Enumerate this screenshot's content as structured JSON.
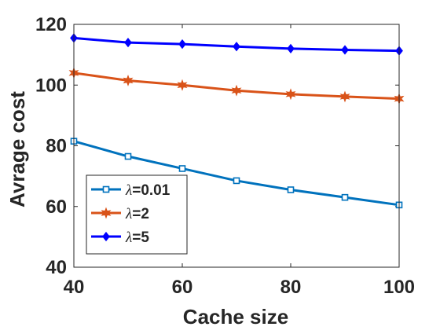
{
  "chart_data": {
    "type": "line",
    "x": [
      40,
      50,
      60,
      70,
      80,
      90,
      100
    ],
    "xlabel": "Cache size",
    "ylabel": "Avrage cost",
    "xlim": [
      40,
      100
    ],
    "ylim": [
      40,
      120
    ],
    "xticks": [
      "40",
      "60",
      "80",
      "100"
    ],
    "yticks": [
      "40",
      "60",
      "80",
      "100",
      "120"
    ],
    "grid": false,
    "legend_position": "bottom-left",
    "series": [
      {
        "name_symbol": "λ",
        "name_rest": "=0.01",
        "color": "#0072BD",
        "marker": "square",
        "values": [
          81.5,
          76.5,
          72.5,
          68.5,
          65.5,
          63.0,
          60.5
        ]
      },
      {
        "name_symbol": "λ",
        "name_rest": "=2",
        "color": "#D95319",
        "marker": "star",
        "values": [
          104.0,
          101.5,
          100.0,
          98.2,
          97.0,
          96.2,
          95.5
        ]
      },
      {
        "name_symbol": "λ",
        "name_rest": "=5",
        "color": "#0000FF",
        "marker": "diamond",
        "values": [
          115.5,
          114.0,
          113.5,
          112.7,
          112.0,
          111.6,
          111.3
        ]
      }
    ]
  }
}
